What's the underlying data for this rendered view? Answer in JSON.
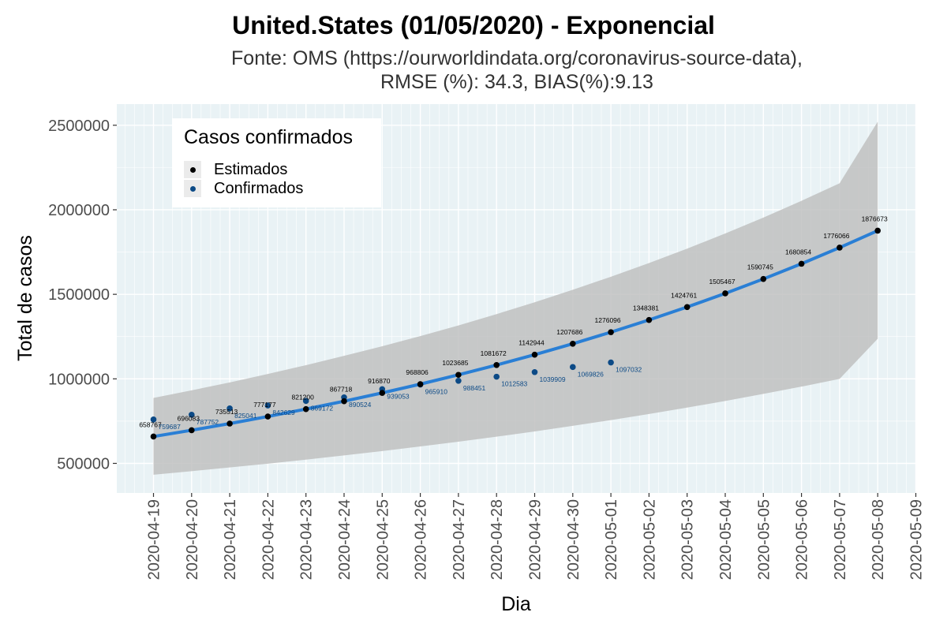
{
  "chart_data": {
    "type": "line",
    "title": "United.States (01/05/2020) - Exponencial",
    "subtitle": [
      "Fonte: OMS (https://ourworldindata.org/coronavirus-source-data),",
      "RMSE (%): 34.3, BIAS(%):9.13"
    ],
    "xlabel": "Dia",
    "ylabel": "Total de casos",
    "x": [
      "2020-04-19",
      "2020-04-20",
      "2020-04-21",
      "2020-04-22",
      "2020-04-23",
      "2020-04-24",
      "2020-04-25",
      "2020-04-26",
      "2020-04-27",
      "2020-04-28",
      "2020-04-29",
      "2020-04-30",
      "2020-05-01",
      "2020-05-02",
      "2020-05-03",
      "2020-05-04",
      "2020-05-05",
      "2020-05-06",
      "2020-05-07",
      "2020-05-08"
    ],
    "x_ticks": [
      "2020-04-19",
      "2020-04-20",
      "2020-04-21",
      "2020-04-22",
      "2020-04-23",
      "2020-04-24",
      "2020-04-25",
      "2020-04-26",
      "2020-04-27",
      "2020-04-28",
      "2020-04-29",
      "2020-04-30",
      "2020-05-01",
      "2020-05-02",
      "2020-05-03",
      "2020-05-04",
      "2020-05-05",
      "2020-05-06",
      "2020-05-07",
      "2020-05-08",
      "2020-05-09"
    ],
    "y_ticks": [
      500000,
      1000000,
      1500000,
      2000000,
      2500000
    ],
    "ylim": [
      325000,
      2625000
    ],
    "grid": true,
    "legend": {
      "title": "Casos confirmados",
      "position": "top-left"
    },
    "series": [
      {
        "name": "Estimados",
        "color": "#000000",
        "values": [
          658767,
          696083,
          735513,
          777177,
          821200,
          867718,
          916870,
          968806,
          1023685,
          1081672,
          1142944,
          1207686,
          1276096,
          1348381,
          1424761,
          1505467,
          1590745,
          1680854,
          1776066,
          1876673
        ]
      },
      {
        "name": "Confirmados",
        "color": "#0c4a86",
        "values": [
          759687,
          787752,
          825041,
          842629,
          869172,
          890524,
          939053,
          965910,
          988451,
          1012583,
          1039909,
          1069826,
          1097032,
          null,
          null,
          null,
          null,
          null,
          null,
          null
        ]
      }
    ],
    "fit_line": {
      "color": "#2a7fd5"
    },
    "confidence_band": {
      "color": "#bdbdbd",
      "lower": [
        433000,
        454000,
        476000,
        498000,
        522000,
        547000,
        573000,
        600000,
        628000,
        658000,
        689000,
        722000,
        756000,
        792000,
        830000,
        869000,
        911000,
        954000,
        1000000,
        1237000
      ],
      "upper": [
        887000,
        932000,
        979000,
        1029000,
        1081000,
        1136000,
        1193000,
        1253000,
        1316000,
        1383000,
        1453000,
        1527000,
        1604000,
        1685000,
        1770000,
        1860000,
        1954000,
        2053000,
        2157000,
        2521000
      ]
    },
    "panel_background": "#e9f2f5"
  }
}
